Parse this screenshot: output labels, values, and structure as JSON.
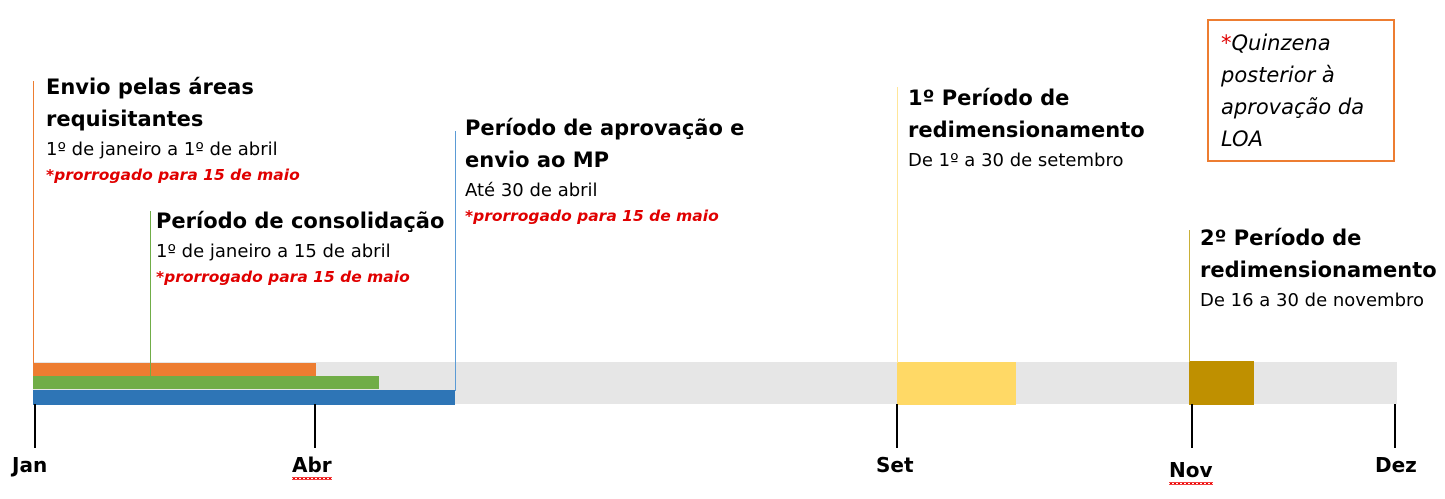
{
  "colors": {
    "orange": "#ed7d31",
    "green": "#70ad47",
    "blue": "#2e75b6",
    "yellow": "#ffd966",
    "gold": "#bf9000",
    "track": "#e6e6e6",
    "note_red": "#e00000"
  },
  "months": {
    "jan": "Jan",
    "abr": "Abr",
    "set": "Set",
    "nov": "Nov",
    "dez": "Dez"
  },
  "events": {
    "envio": {
      "title_1": "Envio pelas áreas",
      "title_2": "requisitantes",
      "dates": "1º de janeiro a 1º de abril",
      "note": "*prorrogado para 15 de maio"
    },
    "consolidacao": {
      "title": "Período de consolidação",
      "dates": "1º de janeiro a 15 de abril",
      "note": "*prorrogado para 15 de maio"
    },
    "aprovacao": {
      "title_1": "Período de aprovação e",
      "title_2": "envio ao MP",
      "dates": "Até 30 de abril",
      "note": "*prorrogado para 15 de maio"
    },
    "redim1": {
      "title_1": "1º Período de",
      "title_2": "redimensionamento",
      "dates": "De 1º a 30 de setembro"
    },
    "redim2": {
      "title_1": "2º Período de",
      "title_2": "redimensionamento",
      "dates": "De 16 a 30 de novembro"
    }
  },
  "footnote": {
    "star": "*",
    "line_1": "Quinzena",
    "line_2": "posterior à",
    "line_3": "aprovação da",
    "line_4": "LOA"
  }
}
